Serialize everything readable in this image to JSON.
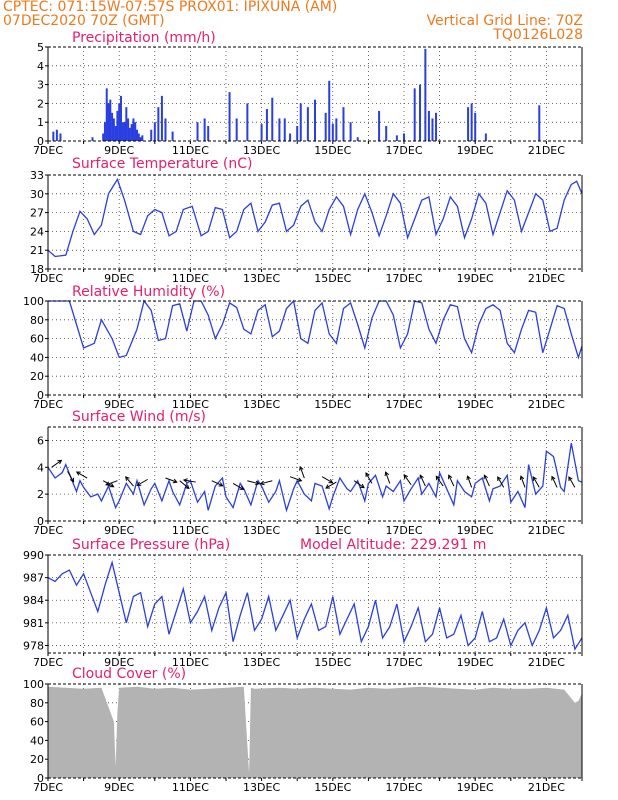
{
  "header": {
    "line1": "CPTEC:    071:15W-07:57S    PROX01: IPIXUNA (AM)",
    "line2": "07DEC2020 70Z (GMT)",
    "right1": "Vertical Grid Line: 70Z",
    "right2": "TQ0126L028"
  },
  "x_ticks": [
    "7DEC",
    "9DEC",
    "11DEC",
    "13DEC",
    "15DEC",
    "17DEC",
    "19DEC",
    "21DEC"
  ],
  "colors": {
    "line": "#2a3fe0",
    "bar": "#2a3fe0",
    "cloud": "#b3b3b3",
    "title": "#e5206e",
    "header": "#ee7a1e",
    "arrow": "#000000"
  },
  "chart_data": [
    {
      "type": "bar",
      "title": "Precipitation (mm/h)",
      "ylim": [
        0,
        5
      ],
      "yticks": [
        "0",
        "1",
        "2",
        "3",
        "4",
        "5"
      ],
      "x_range_days": [
        7,
        22
      ],
      "series": [
        {
          "x": [
            7.15,
            7.25,
            7.35,
            8.25,
            8.55,
            8.6,
            8.65,
            8.7,
            8.75,
            8.8,
            8.85,
            8.9,
            8.95,
            9.0,
            9.05,
            9.1,
            9.15,
            9.2,
            9.25,
            9.3,
            9.35,
            9.4,
            9.45,
            9.5,
            9.55,
            9.6,
            9.65,
            9.9,
            10.0,
            10.1,
            10.2,
            10.3,
            10.5,
            11.2,
            11.4,
            11.5,
            12.1,
            12.3,
            12.6,
            13.0,
            13.15,
            13.3,
            13.5,
            13.65,
            13.8,
            14.0,
            14.1,
            14.3,
            14.5,
            14.8,
            14.9,
            15.0,
            15.1,
            15.3,
            15.5,
            15.7,
            16.3,
            16.5,
            16.8,
            17.0,
            17.3,
            17.45,
            17.6,
            17.7,
            17.8,
            17.9,
            18.8,
            18.9,
            19.0,
            19.3,
            20.8
          ],
          "values": [
            0.5,
            0.6,
            0.4,
            0.2,
            0.4,
            1.0,
            2.8,
            2.0,
            2.2,
            1.5,
            1.2,
            0.8,
            1.6,
            2.0,
            2.4,
            1.0,
            1.0,
            1.8,
            1.2,
            0.7,
            0.9,
            1.2,
            1.0,
            0.6,
            0.4,
            0.2,
            0.3,
            0.6,
            1.0,
            1.8,
            2.4,
            1.2,
            0.5,
            1.0,
            1.2,
            0.8,
            2.6,
            1.2,
            2.0,
            0.9,
            1.7,
            2.3,
            1.2,
            1.2,
            0.4,
            0.8,
            2.0,
            1.8,
            2.2,
            1.5,
            3.2,
            0.9,
            1.2,
            1.8,
            1.0,
            0.2,
            1.6,
            0.8,
            0.3,
            0.4,
            2.8,
            3.0,
            4.9,
            1.6,
            1.2,
            1.5,
            1.8,
            2.0,
            1.5,
            0.4,
            1.9
          ]
        }
      ]
    },
    {
      "type": "line",
      "title": "Surface Temperature (nC)",
      "ylim": [
        18,
        33
      ],
      "yticks": [
        "18",
        "21",
        "24",
        "27",
        "30",
        "33"
      ],
      "x_range_days": [
        7,
        22
      ],
      "series": [
        {
          "x": [
            7.0,
            7.2,
            7.5,
            7.7,
            7.9,
            8.1,
            8.3,
            8.5,
            8.7,
            8.95,
            9.15,
            9.4,
            9.6,
            9.8,
            10.0,
            10.2,
            10.4,
            10.6,
            10.8,
            11.05,
            11.3,
            11.5,
            11.7,
            11.9,
            12.1,
            12.3,
            12.5,
            12.7,
            12.9,
            13.1,
            13.3,
            13.5,
            13.7,
            13.9,
            14.1,
            14.3,
            14.5,
            14.7,
            14.9,
            15.1,
            15.3,
            15.5,
            15.7,
            15.9,
            16.1,
            16.3,
            16.5,
            16.7,
            16.9,
            17.1,
            17.3,
            17.5,
            17.7,
            17.9,
            18.1,
            18.3,
            18.5,
            18.7,
            18.9,
            19.1,
            19.3,
            19.5,
            19.7,
            19.9,
            20.1,
            20.3,
            20.5,
            20.7,
            20.9,
            21.1,
            21.3,
            21.5,
            21.7,
            21.85,
            22.0
          ],
          "values": [
            21.0,
            20.0,
            20.2,
            24.0,
            27.2,
            26.0,
            23.5,
            25.0,
            30.0,
            32.3,
            29.0,
            24.0,
            23.5,
            26.5,
            27.5,
            27.0,
            23.3,
            24.0,
            27.5,
            28.0,
            23.3,
            24.0,
            27.8,
            27.5,
            23.0,
            24.0,
            27.5,
            28.5,
            24.0,
            25.5,
            28.2,
            28.5,
            24.0,
            25.0,
            28.0,
            29.0,
            25.5,
            24.0,
            27.5,
            29.5,
            28.0,
            23.5,
            27.5,
            30.0,
            27.0,
            23.3,
            26.5,
            30.0,
            28.5,
            23.0,
            26.0,
            29.0,
            29.5,
            23.5,
            26.0,
            29.5,
            28.0,
            23.0,
            26.0,
            30.0,
            28.5,
            23.5,
            27.0,
            30.5,
            29.0,
            24.0,
            27.0,
            30.0,
            29.0,
            24.0,
            24.5,
            29.0,
            31.5,
            32.0,
            30.0
          ]
        }
      ]
    },
    {
      "type": "line",
      "title": "Relative Humidity (%)",
      "ylim": [
        0,
        100
      ],
      "yticks": [
        "0",
        "20",
        "40",
        "60",
        "80",
        "100"
      ],
      "x_range_days": [
        7,
        22
      ],
      "series": [
        {
          "x": [
            7.0,
            7.3,
            7.6,
            7.8,
            8.0,
            8.3,
            8.5,
            8.8,
            9.0,
            9.2,
            9.5,
            9.7,
            9.9,
            10.1,
            10.3,
            10.5,
            10.7,
            10.9,
            11.1,
            11.3,
            11.5,
            11.7,
            11.9,
            12.1,
            12.3,
            12.5,
            12.7,
            12.9,
            13.1,
            13.3,
            13.5,
            13.7,
            13.9,
            14.1,
            14.3,
            14.5,
            14.7,
            14.9,
            15.1,
            15.3,
            15.5,
            15.7,
            15.9,
            16.1,
            16.3,
            16.5,
            16.7,
            16.9,
            17.1,
            17.3,
            17.5,
            17.7,
            17.9,
            18.1,
            18.3,
            18.5,
            18.7,
            18.9,
            19.1,
            19.3,
            19.5,
            19.7,
            19.9,
            20.1,
            20.3,
            20.5,
            20.7,
            20.9,
            21.1,
            21.3,
            21.5,
            21.7,
            21.9,
            22.0
          ],
          "values": [
            100,
            100,
            100,
            75,
            50,
            55,
            80,
            60,
            40,
            42,
            70,
            100,
            90,
            58,
            60,
            95,
            97,
            68,
            100,
            100,
            85,
            60,
            75,
            98,
            93,
            70,
            65,
            90,
            96,
            62,
            68,
            92,
            100,
            60,
            55,
            90,
            98,
            65,
            55,
            92,
            98,
            75,
            50,
            82,
            100,
            100,
            85,
            50,
            65,
            100,
            98,
            70,
            55,
            80,
            96,
            94,
            60,
            45,
            75,
            92,
            96,
            90,
            55,
            45,
            70,
            90,
            88,
            45,
            70,
            95,
            92,
            65,
            40,
            52
          ]
        }
      ]
    },
    {
      "type": "line",
      "title": "Surface Wind (m/s)",
      "ylim": [
        0,
        7
      ],
      "yticks": [
        "0",
        "2",
        "4",
        "6"
      ],
      "x_range_days": [
        7,
        22
      ],
      "series": [
        {
          "x": [
            7.0,
            7.2,
            7.4,
            7.5,
            7.6,
            7.8,
            7.9,
            8.0,
            8.2,
            8.4,
            8.5,
            8.7,
            8.9,
            9.0,
            9.2,
            9.4,
            9.5,
            9.7,
            9.9,
            10.0,
            10.2,
            10.4,
            10.5,
            10.7,
            10.9,
            11.0,
            11.2,
            11.4,
            11.5,
            11.7,
            11.9,
            12.0,
            12.2,
            12.4,
            12.5,
            12.7,
            12.9,
            13.0,
            13.2,
            13.4,
            13.5,
            13.7,
            13.9,
            14.0,
            14.2,
            14.4,
            14.5,
            14.7,
            14.9,
            15.0,
            15.2,
            15.4,
            15.5,
            15.7,
            15.9,
            16.0,
            16.2,
            16.4,
            16.5,
            16.7,
            16.9,
            17.0,
            17.2,
            17.4,
            17.5,
            17.7,
            17.9,
            18.0,
            18.2,
            18.4,
            18.5,
            18.7,
            18.9,
            19.0,
            19.2,
            19.4,
            19.5,
            19.7,
            19.9,
            20.0,
            20.2,
            20.4,
            20.5,
            20.7,
            20.9,
            21.0,
            21.2,
            21.4,
            21.5,
            21.7,
            21.9,
            22.0
          ],
          "values": [
            4.0,
            3.2,
            3.6,
            4.2,
            3.5,
            2.2,
            3.0,
            2.5,
            1.8,
            2.0,
            1.5,
            2.6,
            1.0,
            1.5,
            2.8,
            2.0,
            3.0,
            1.2,
            2.4,
            2.8,
            1.5,
            3.0,
            2.2,
            1.2,
            2.8,
            3.0,
            1.4,
            2.2,
            0.8,
            2.6,
            3.2,
            1.8,
            1.0,
            2.8,
            2.4,
            1.2,
            3.0,
            2.6,
            1.4,
            2.2,
            3.0,
            0.8,
            2.4,
            3.0,
            2.0,
            1.5,
            2.8,
            2.6,
            0.9,
            1.8,
            3.2,
            2.4,
            2.2,
            3.0,
            1.5,
            2.8,
            3.4,
            1.8,
            2.6,
            2.2,
            3.0,
            1.5,
            2.4,
            3.2,
            2.0,
            2.8,
            1.8,
            3.6,
            2.4,
            1.2,
            3.0,
            2.2,
            1.8,
            2.8,
            3.2,
            1.5,
            2.4,
            2.6,
            3.4,
            1.4,
            2.2,
            1.0,
            4.2,
            2.0,
            2.6,
            5.2,
            4.8,
            2.5,
            2.2,
            5.8,
            3.0,
            2.9
          ]
        }
      ]
    },
    {
      "type": "line",
      "title": "Surface Pressure (hPa)",
      "annotation": "Model Altitude: 229.291 m",
      "ylim": [
        977,
        990
      ],
      "yticks": [
        "978",
        "981",
        "984",
        "987",
        "990"
      ],
      "x_range_days": [
        7,
        22
      ],
      "series": [
        {
          "x": [
            7.0,
            7.2,
            7.4,
            7.6,
            7.8,
            8.0,
            8.2,
            8.4,
            8.6,
            8.8,
            9.0,
            9.2,
            9.4,
            9.6,
            9.8,
            10.0,
            10.2,
            10.4,
            10.6,
            10.8,
            11.0,
            11.2,
            11.4,
            11.6,
            11.8,
            12.0,
            12.2,
            12.4,
            12.6,
            12.8,
            13.0,
            13.2,
            13.4,
            13.6,
            13.8,
            14.0,
            14.2,
            14.4,
            14.6,
            14.8,
            15.0,
            15.2,
            15.4,
            15.6,
            15.8,
            16.0,
            16.2,
            16.4,
            16.6,
            16.8,
            17.0,
            17.2,
            17.4,
            17.6,
            17.8,
            18.0,
            18.2,
            18.4,
            18.6,
            18.8,
            19.0,
            19.2,
            19.4,
            19.6,
            19.8,
            20.0,
            20.2,
            20.4,
            20.6,
            20.8,
            21.0,
            21.2,
            21.4,
            21.6,
            21.8,
            22.0
          ],
          "values": [
            987.0,
            986.5,
            987.5,
            988.0,
            986.0,
            987.5,
            985.0,
            982.5,
            986.0,
            989.0,
            985.0,
            981.0,
            984.5,
            985.0,
            980.5,
            983.5,
            984.5,
            979.5,
            982.5,
            985.5,
            981.0,
            982.5,
            984.5,
            980.0,
            983.0,
            985.0,
            978.5,
            982.0,
            985.0,
            980.0,
            981.5,
            984.5,
            980.0,
            982.0,
            984.0,
            979.0,
            981.5,
            983.5,
            980.0,
            980.5,
            984.5,
            979.5,
            981.5,
            983.5,
            978.5,
            980.5,
            984.0,
            979.0,
            980.5,
            983.5,
            978.5,
            980.5,
            983.0,
            978.5,
            979.5,
            983.0,
            979.0,
            979.5,
            982.0,
            978.0,
            979.0,
            982.5,
            978.5,
            979.0,
            981.5,
            978.0,
            980.0,
            981.0,
            978.0,
            980.0,
            983.0,
            979.0,
            980.0,
            982.0,
            977.5,
            979.0
          ]
        }
      ]
    },
    {
      "type": "area",
      "title": "Cloud Cover (%)",
      "ylim": [
        0,
        100
      ],
      "yticks": [
        "0",
        "20",
        "40",
        "60",
        "80",
        "100"
      ],
      "x_range_days": [
        7,
        22
      ],
      "series": [
        {
          "x": [
            7.0,
            7.5,
            8.0,
            8.5,
            8.85,
            8.9,
            8.95,
            9.0,
            9.5,
            10.0,
            10.5,
            11.0,
            11.5,
            12.0,
            12.5,
            12.65,
            12.7,
            12.8,
            13.5,
            14.0,
            14.5,
            15.0,
            15.5,
            16.0,
            16.5,
            17.0,
            17.5,
            18.0,
            18.5,
            19.0,
            19.5,
            20.0,
            20.5,
            21.0,
            21.5,
            21.8,
            21.9,
            22.0
          ],
          "values": [
            97,
            96,
            95,
            96,
            60,
            12,
            70,
            96,
            97,
            95,
            96,
            94,
            95,
            96,
            97,
            5,
            96,
            95,
            96,
            95,
            96,
            95,
            94,
            96,
            95,
            96,
            97,
            96,
            95,
            94,
            96,
            95,
            95,
            96,
            94,
            80,
            82,
            90
          ]
        }
      ]
    }
  ]
}
